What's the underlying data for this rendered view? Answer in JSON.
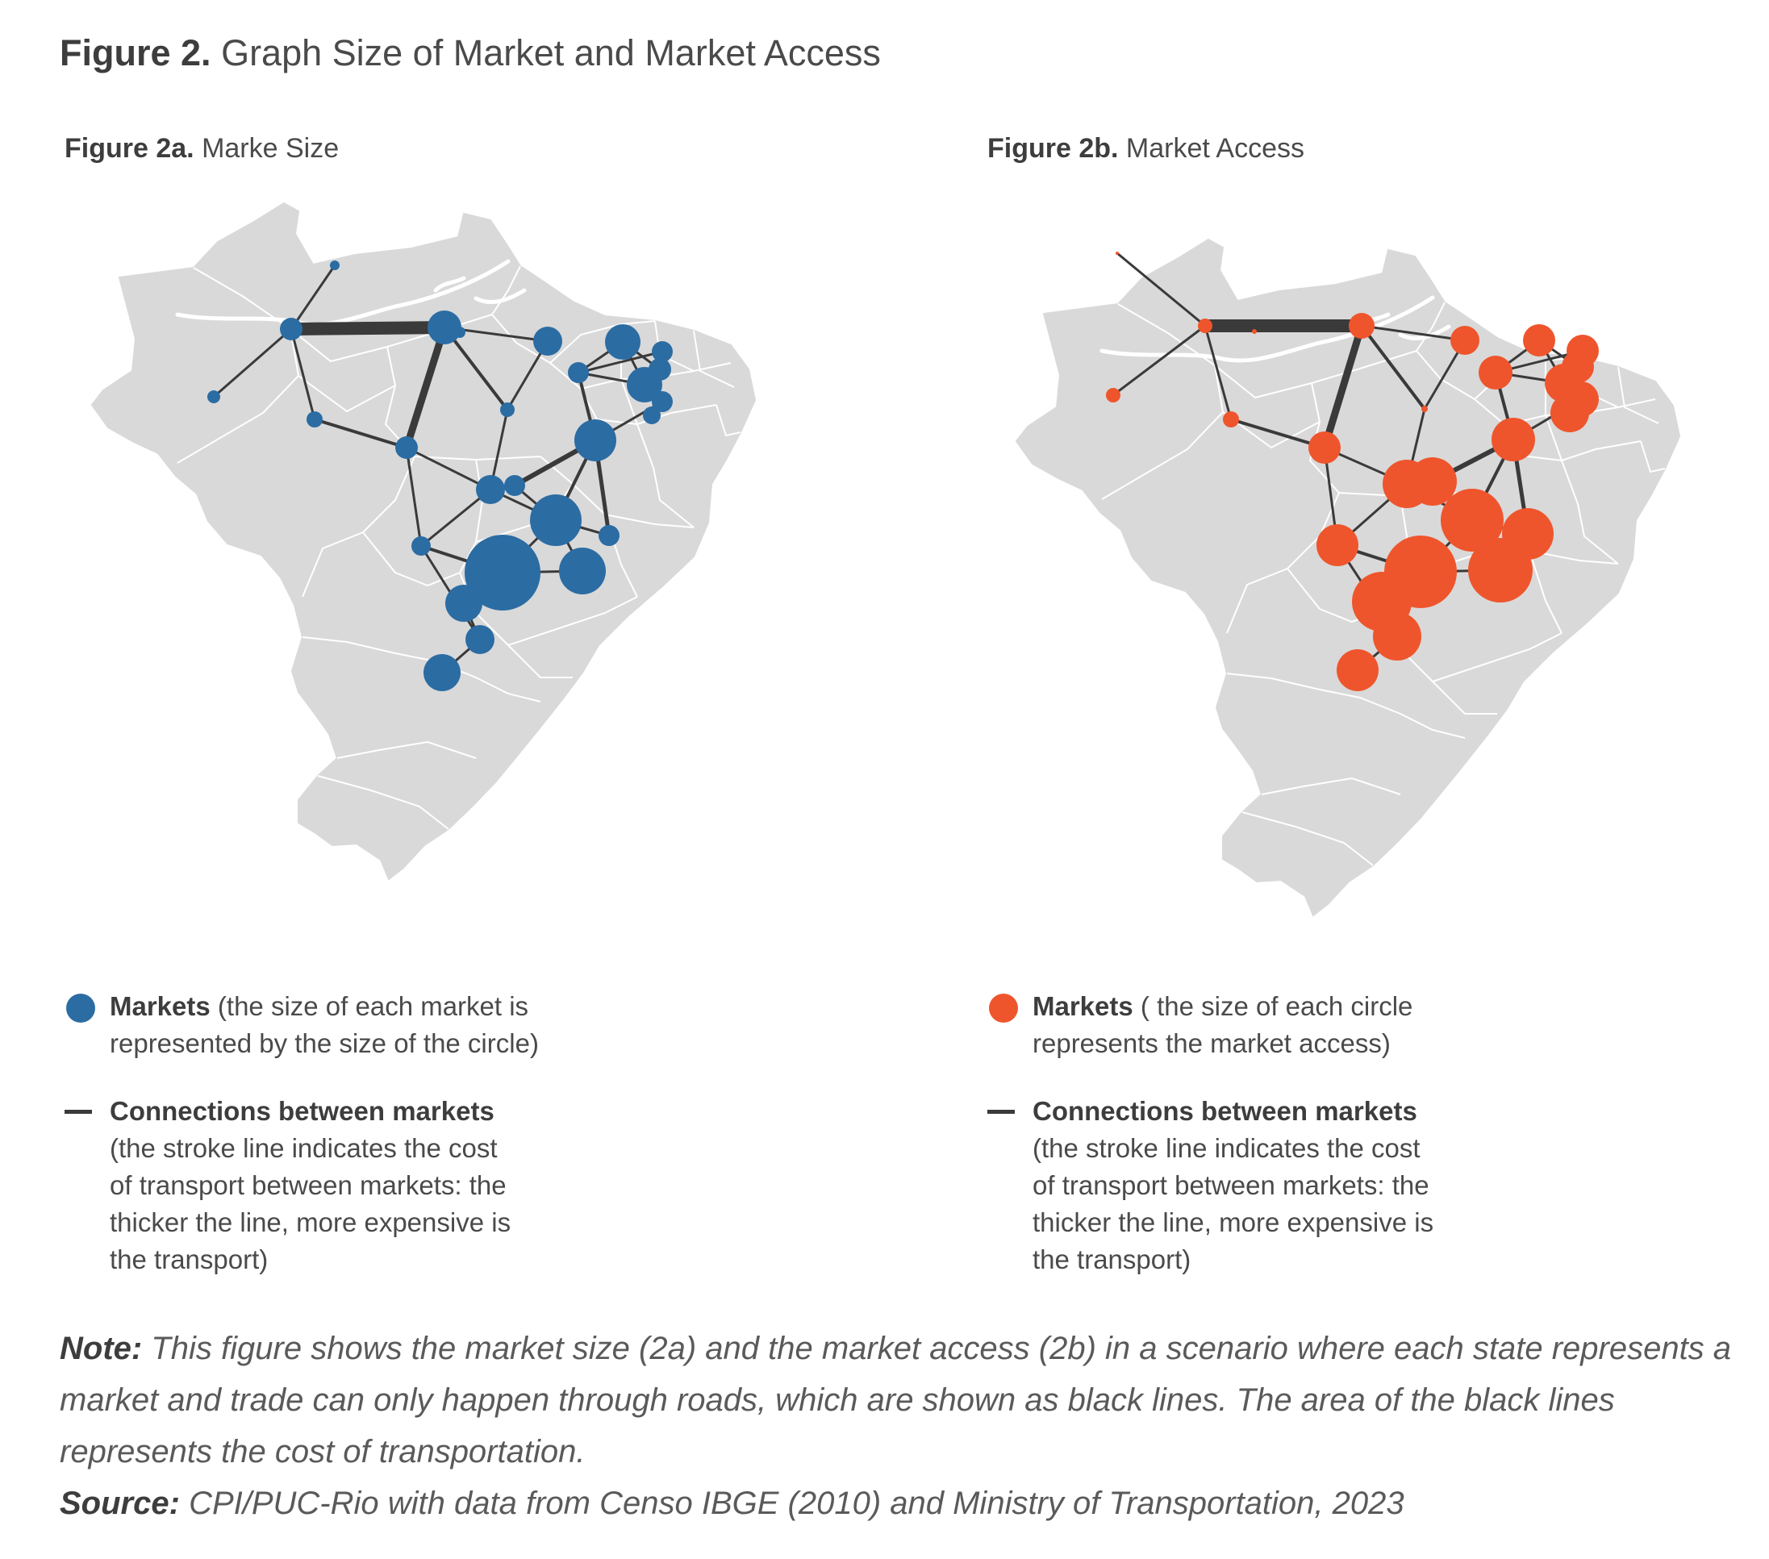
{
  "header": {
    "figure_label": "Figure 2.",
    "figure_title": "Graph Size of Market and Market Access"
  },
  "panel_a": {
    "label": "Figure 2a.",
    "title": "Marke Size",
    "marker_color": "#2b6ca3",
    "legend": {
      "markets_label": "Markets",
      "markets_line1": "(the size of each market is",
      "markets_line2": "represented by the size of the circle)",
      "connections_label": "Connections between markets",
      "connections_lines": [
        "(the stroke line indicates the cost",
        "of transport between markets: the",
        "thicker the line, more expensive is",
        "the transport)"
      ]
    }
  },
  "panel_b": {
    "label": "Figure 2b.",
    "title": "Market Access",
    "marker_color": "#ef552c",
    "legend": {
      "markets_label": "Markets",
      "markets_line1": "( the size of each circle",
      "markets_line2": "represents the market access)",
      "connections_label": "Connections between markets",
      "connections_lines": [
        "(the stroke line indicates the cost",
        "of transport between markets: the",
        "thicker the line, more expensive is",
        "the transport)"
      ]
    }
  },
  "footer": {
    "note_label": "Note:",
    "note_text": "This figure shows the market size (2a) and the market access (2b) in a scenario where each state represents a market and trade can only happen through roads, which are shown as black lines. The area of the black lines represents the cost of transportation.",
    "source_label": "Source:",
    "source_text": "CPI/PUC-Rio with data from Censo IBGE (2010) and Ministry of Transportation, 2023"
  },
  "colors": {
    "land": "#d9d9d9",
    "borders": "#ffffff",
    "roads": "#3a3a3a"
  }
}
